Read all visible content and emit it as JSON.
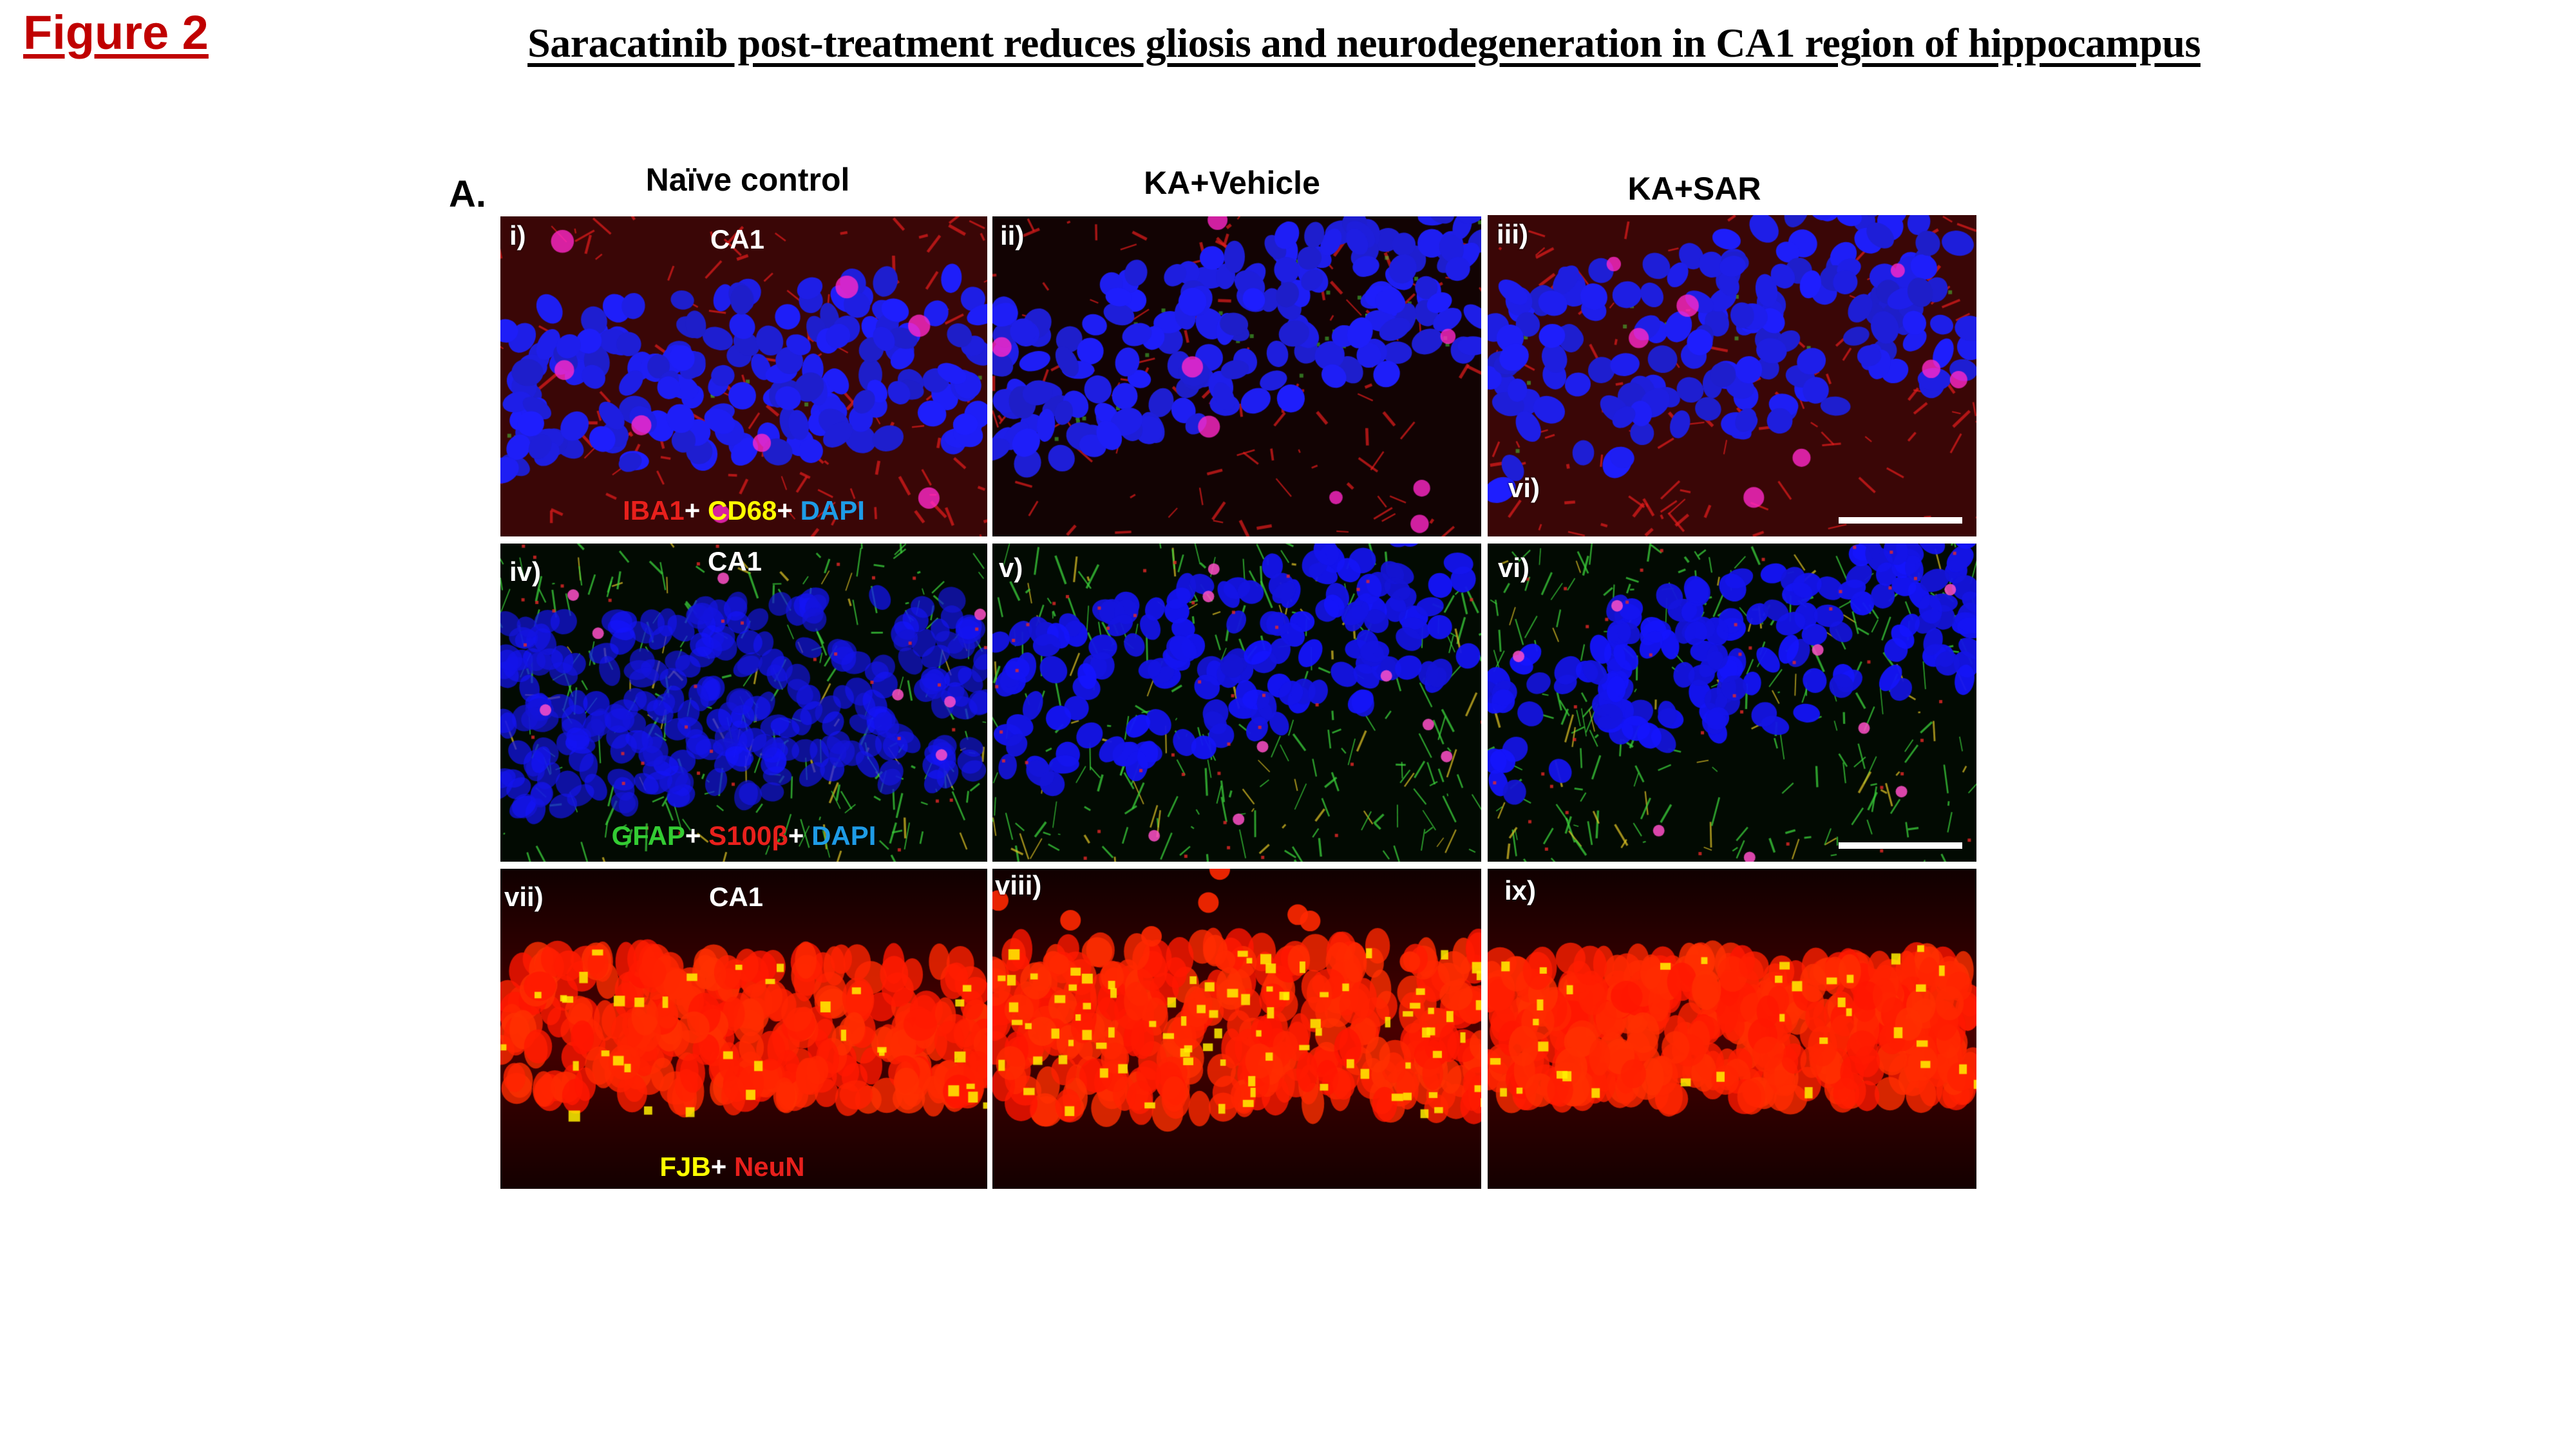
{
  "figure_label": "Figure 2",
  "title": "Saracatinib post-treatment reduces gliosis and neurodegeneration in CA1 region of hippocampus",
  "part_label": "A.",
  "columns": [
    "Naïve control",
    "KA+Vehicle",
    "KA+SAR"
  ],
  "region_label": "CA1",
  "panels": [
    {
      "label": "i)",
      "stain": "IBA1/CD68/DAPI",
      "region": true
    },
    {
      "label": "ii)",
      "stain": "IBA1/CD68/DAPI"
    },
    {
      "label": "iii)",
      "stain": "IBA1/CD68/DAPI",
      "extra_label": "vi)",
      "scale_bar": true
    },
    {
      "label": "iv)",
      "stain": "GFAP/S100β/DAPI",
      "region": true
    },
    {
      "label": "v)",
      "stain": "GFAP/S100β/DAPI"
    },
    {
      "label": "vi)",
      "stain": "GFAP/S100β/DAPI",
      "scale_bar": true
    },
    {
      "label": "vii)",
      "stain": "FJB/NeuN",
      "region": true
    },
    {
      "label": "viii)",
      "stain": "FJB/NeuN"
    },
    {
      "label": "ix)",
      "stain": "FJB/NeuN"
    }
  ],
  "legends": {
    "row1": [
      {
        "text": "IBA1",
        "color": "#e8201c"
      },
      {
        "text": "+",
        "color": "#ffffff"
      },
      {
        "text": "CD68",
        "color": "#ffff00"
      },
      {
        "text": "+",
        "color": "#ffffff"
      },
      {
        "text": "DAPI",
        "color": "#1e9be6"
      }
    ],
    "row2": [
      {
        "text": "GFAP",
        "color": "#33cc33"
      },
      {
        "text": "+",
        "color": "#ffffff"
      },
      {
        "text": "S100β",
        "color": "#e8201c"
      },
      {
        "text": "+",
        "color": "#ffffff"
      },
      {
        "text": "DAPI",
        "color": "#1e9be6"
      }
    ],
    "row3": [
      {
        "text": "FJB",
        "color": "#ffff00"
      },
      {
        "text": "+",
        "color": "#ffffff"
      },
      {
        "text": "NeuN",
        "color": "#e8201c"
      }
    ]
  },
  "colors": {
    "figure_label": "#c00000",
    "dapi": "#1a1aff",
    "neun": "#ff1a00",
    "gfap": "#33cc33"
  }
}
